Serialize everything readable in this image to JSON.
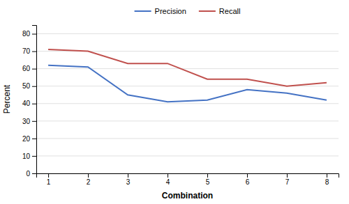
{
  "chart_data": {
    "type": "line",
    "xlabel": "Combination",
    "ylabel": "Percent",
    "x": [
      1,
      2,
      3,
      4,
      5,
      6,
      7,
      8
    ],
    "series": [
      {
        "name": "Precision",
        "color": "#4472c4",
        "values": [
          62,
          61,
          45,
          41,
          42,
          48,
          46,
          42
        ]
      },
      {
        "name": "Recall",
        "color": "#c0504d",
        "values": [
          71,
          70,
          63,
          63,
          54,
          54,
          50,
          52
        ]
      }
    ],
    "xlim": [
      0.7,
      8.3
    ],
    "xticks": [
      1,
      2,
      3,
      4,
      5,
      6,
      7,
      8
    ],
    "ylim": [
      0,
      85
    ],
    "yticks": [
      0,
      10,
      20,
      30,
      40,
      50,
      60,
      70,
      80
    ],
    "grid": true,
    "legend": "top"
  }
}
